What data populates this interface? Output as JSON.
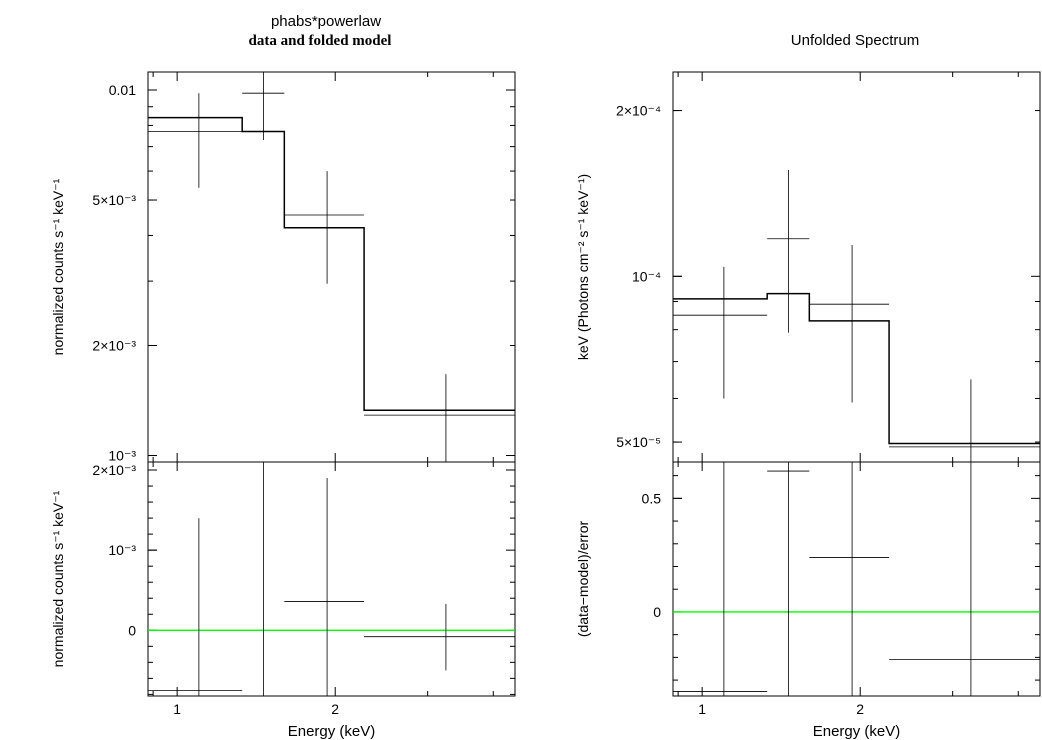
{
  "title": "phabs*powerlaw",
  "left_subtitle": "data and folded model",
  "right_subtitle": "Unfolded Spectrum",
  "colors": {
    "axes": "#000000",
    "data": "#000000",
    "model": "#000000",
    "zero_line": "#00ff00"
  },
  "chart_data": [
    {
      "id": "left_top",
      "type": "line",
      "ylabel": "normalized counts s⁻¹ keV⁻¹",
      "xscale": "log",
      "yscale": "log",
      "xlim": [
        0.88,
        4.4
      ],
      "ylim": [
        0.00096,
        0.0112
      ],
      "x_ticks": [
        {
          "value": 1,
          "label": ""
        },
        {
          "value": 2,
          "label": ""
        }
      ],
      "y_ticks": [
        {
          "value": 0.01,
          "label": "0.01"
        },
        {
          "value": 0.005,
          "label": "5×10⁻³"
        },
        {
          "value": 0.002,
          "label": "2×10⁻³"
        },
        {
          "value": 0.001,
          "label": "10⁻³"
        }
      ],
      "data_points": [
        {
          "xlo": 0.88,
          "xhi": 1.33,
          "x": 1.1,
          "y": 0.0077,
          "ylo": 0.0054,
          "yhi": 0.0098
        },
        {
          "xlo": 1.33,
          "xhi": 1.6,
          "x": 1.46,
          "y": 0.0098,
          "ylo": 0.0073,
          "yhi": 0.0117
        },
        {
          "xlo": 1.6,
          "xhi": 2.27,
          "x": 1.93,
          "y": 0.00455,
          "ylo": 0.00295,
          "yhi": 0.006
        },
        {
          "xlo": 2.27,
          "xhi": 4.4,
          "x": 3.25,
          "y": 0.00129,
          "ylo": 0.00096,
          "yhi": 0.00167
        }
      ],
      "model": [
        {
          "xlo": 0.88,
          "xhi": 1.33,
          "y": 0.0084
        },
        {
          "xlo": 1.33,
          "xhi": 1.6,
          "y": 0.0077
        },
        {
          "xlo": 1.6,
          "xhi": 2.27,
          "y": 0.0042
        },
        {
          "xlo": 2.27,
          "xhi": 4.4,
          "y": 0.00133
        }
      ]
    },
    {
      "id": "left_bottom",
      "type": "line",
      "xlabel": "Energy (keV)",
      "ylabel": "normalized counts s⁻¹ keV⁻¹",
      "xscale": "log",
      "yscale": "linear",
      "xlim": [
        0.88,
        4.4
      ],
      "ylim": [
        -0.00082,
        0.0021
      ],
      "x_ticks": [
        {
          "value": 1,
          "label": "1"
        },
        {
          "value": 2,
          "label": "2"
        }
      ],
      "y_ticks": [
        {
          "value": 0.002,
          "label": "2×10⁻³"
        },
        {
          "value": 0.001,
          "label": "10⁻³"
        },
        {
          "value": 0,
          "label": "0"
        }
      ],
      "zero_line": 0,
      "data_points": [
        {
          "xlo": 0.88,
          "xhi": 1.33,
          "x": 1.1,
          "y": -0.00075,
          "ylo": -0.00082,
          "yhi": 0.0014
        },
        {
          "xlo": 1.33,
          "xhi": 1.6,
          "x": 1.46,
          "y": 0.0021,
          "ylo": -0.00082,
          "yhi": 0.0021
        },
        {
          "xlo": 1.6,
          "xhi": 2.27,
          "x": 1.93,
          "y": 0.00036,
          "ylo": -0.00082,
          "yhi": 0.0019
        },
        {
          "xlo": 2.27,
          "xhi": 4.4,
          "x": 3.25,
          "y": -8e-05,
          "ylo": -0.0005,
          "yhi": 0.00033
        }
      ]
    },
    {
      "id": "right_top",
      "type": "line",
      "ylabel": "keV (Photons cm⁻² s⁻¹ keV⁻¹)",
      "xscale": "log",
      "yscale": "log",
      "xlim": [
        0.88,
        4.4
      ],
      "ylim": [
        4.6e-05,
        0.000235
      ],
      "x_ticks": [
        {
          "value": 1,
          "label": ""
        },
        {
          "value": 2,
          "label": ""
        }
      ],
      "y_ticks": [
        {
          "value": 0.0002,
          "label": "2×10⁻⁴"
        },
        {
          "value": 0.0001,
          "label": "10⁻⁴"
        },
        {
          "value": 5e-05,
          "label": "5×10⁻⁵"
        }
      ],
      "data_points": [
        {
          "xlo": 0.88,
          "xhi": 1.33,
          "x": 1.1,
          "y": 8.5e-05,
          "ylo": 6e-05,
          "yhi": 0.000104
        },
        {
          "xlo": 1.33,
          "xhi": 1.6,
          "x": 1.46,
          "y": 0.000117,
          "ylo": 7.9e-05,
          "yhi": 0.000156
        },
        {
          "xlo": 1.6,
          "xhi": 2.27,
          "x": 1.93,
          "y": 8.9e-05,
          "ylo": 5.9e-05,
          "yhi": 0.000114
        },
        {
          "xlo": 2.27,
          "xhi": 4.4,
          "x": 3.25,
          "y": 4.9e-05,
          "ylo": 4.55e-05,
          "yhi": 6.5e-05
        }
      ],
      "model": [
        {
          "xlo": 0.88,
          "xhi": 1.33,
          "y": 9.1e-05
        },
        {
          "xlo": 1.33,
          "xhi": 1.6,
          "y": 9.3e-05
        },
        {
          "xlo": 1.6,
          "xhi": 2.27,
          "y": 8.3e-05
        },
        {
          "xlo": 2.27,
          "xhi": 4.4,
          "y": 4.97e-05
        }
      ]
    },
    {
      "id": "right_bottom",
      "type": "line",
      "xlabel": "Energy (keV)",
      "ylabel": "(data−model)/error",
      "xscale": "log",
      "yscale": "linear",
      "xlim": [
        0.88,
        4.4
      ],
      "ylim": [
        -0.37,
        0.66
      ],
      "x_ticks": [
        {
          "value": 1,
          "label": "1"
        },
        {
          "value": 2,
          "label": "2"
        }
      ],
      "y_ticks": [
        {
          "value": 0.5,
          "label": "0.5"
        },
        {
          "value": 0,
          "label": "0"
        }
      ],
      "zero_line": 0,
      "data_points": [
        {
          "xlo": 0.88,
          "xhi": 1.33,
          "x": 1.1,
          "y": -0.35,
          "ylo": -0.37,
          "yhi": 0.66
        },
        {
          "xlo": 1.33,
          "xhi": 1.6,
          "x": 1.46,
          "y": 0.62,
          "ylo": -0.37,
          "yhi": 0.66
        },
        {
          "xlo": 1.6,
          "xhi": 2.27,
          "x": 1.93,
          "y": 0.24,
          "ylo": -0.37,
          "yhi": 0.66
        },
        {
          "xlo": 2.27,
          "xhi": 4.4,
          "x": 3.25,
          "y": -0.21,
          "ylo": -0.37,
          "yhi": 0.66
        }
      ]
    }
  ]
}
